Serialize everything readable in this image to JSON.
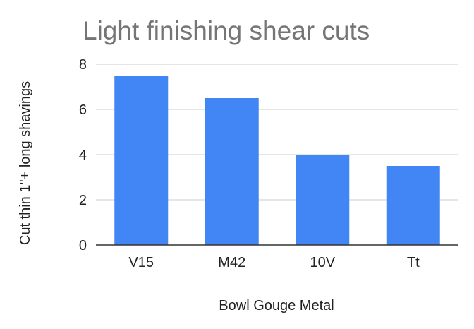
{
  "chart_data": {
    "type": "bar",
    "title": "Light finishing shear cuts",
    "xlabel": "Bowl Gouge Metal",
    "ylabel": "Cut thin 1\"+ long shavings",
    "categories": [
      "V15",
      "M42",
      "10V",
      "Tt"
    ],
    "values": [
      7.5,
      6.5,
      4,
      3.5
    ],
    "ylim": [
      0,
      8
    ],
    "yticks": [
      "0",
      "2",
      "4",
      "6",
      "8"
    ],
    "grid": true,
    "bar_color": "#4285f4",
    "title_color": "#757575",
    "text_color": "#222222",
    "grid_color": "#cccccc",
    "axis_color": "#333333"
  }
}
